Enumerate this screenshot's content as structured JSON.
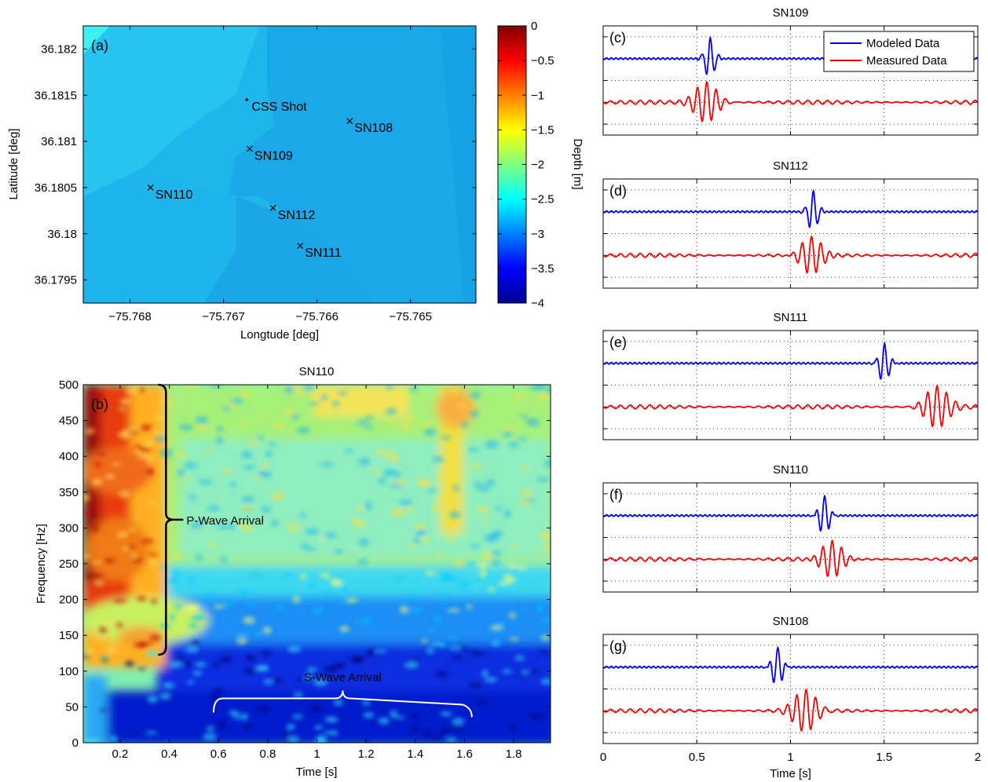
{
  "chart_data": [
    {
      "panel": "(a)",
      "type": "heatmap",
      "title": "",
      "xlabel": "Longtude [deg]",
      "ylabel": "Latitude [deg]",
      "xlim": [
        -75.7685,
        -75.7643
      ],
      "ylim": [
        36.17925,
        36.18225
      ],
      "x_ticks": [
        -75.768,
        -75.767,
        -75.766,
        -75.765
      ],
      "x_tick_labels": [
        "−75.768",
        "−75.767",
        "−75.766",
        "−75.765"
      ],
      "y_ticks": [
        36.1795,
        36.18,
        36.1805,
        36.181,
        36.1815,
        36.182
      ],
      "y_tick_labels": [
        "36.1795",
        "36.18",
        "36.1805",
        "36.181",
        "36.1815",
        "36.182"
      ],
      "colorbar": {
        "label": "Depth [m]",
        "range": [
          -4,
          0
        ],
        "ticks": [
          0,
          -0.5,
          -1,
          -1.5,
          -2,
          -2.5,
          -3,
          -3.5,
          -4
        ],
        "tick_labels": [
          "0",
          "−0.5",
          "−1",
          "−1.5",
          "−2",
          "−2.5",
          "−3",
          "−3.5",
          "−4"
        ]
      },
      "colormap": "jet",
      "depth_levels": [
        {
          "region": "northwest",
          "depth": -2.55
        },
        {
          "region": "center",
          "depth": -2.8
        },
        {
          "region": "northeast",
          "depth": -2.7
        },
        {
          "region": "south",
          "depth": -2.9
        }
      ],
      "points": [
        {
          "label": "CSS Shot",
          "marker": "dot",
          "lon": -75.76675,
          "lat": 36.18145
        },
        {
          "label": "SN108",
          "marker": "x",
          "lon": -75.76565,
          "lat": 36.18122
        },
        {
          "label": "SN109",
          "marker": "x",
          "lon": -75.76672,
          "lat": 36.18092
        },
        {
          "label": "SN110",
          "marker": "x",
          "lon": -75.76778,
          "lat": 36.1805
        },
        {
          "label": "SN112",
          "marker": "x",
          "lon": -75.76647,
          "lat": 36.18028
        },
        {
          "label": "SN111",
          "marker": "x",
          "lon": -75.76618,
          "lat": 36.17987
        }
      ]
    },
    {
      "panel": "(b)",
      "type": "heatmap",
      "title": "SN110",
      "xlabel": "Time [s]",
      "ylabel": "Frequency [Hz]",
      "xlim": [
        0.05,
        1.95
      ],
      "ylim": [
        0,
        500
      ],
      "x_ticks": [
        0.2,
        0.4,
        0.6,
        0.8,
        1,
        1.2,
        1.4,
        1.6,
        1.8
      ],
      "x_tick_labels": [
        "0.2",
        "0.4",
        "0.6",
        "0.8",
        "1",
        "1.2",
        "1.4",
        "1.6",
        "1.8"
      ],
      "y_ticks": [
        0,
        50,
        100,
        150,
        200,
        250,
        300,
        350,
        400,
        450,
        500
      ],
      "y_tick_labels": [
        "0",
        "50",
        "100",
        "150",
        "200",
        "250",
        "300",
        "350",
        "400",
        "450",
        "500"
      ],
      "colormap": "jet",
      "annotations": [
        {
          "text": "P-Wave Arrival",
          "time_at": 0.38,
          "freq_from": 123,
          "freq_to": 500,
          "color": "#000000"
        },
        {
          "text": "S-Wave Arrival",
          "time_from": 0.58,
          "time_to": 1.63,
          "freq_at": 62,
          "color": "#ffffff"
        }
      ]
    },
    {
      "panel": "(c)",
      "type": "line",
      "title": "SN109",
      "xlim": [
        0,
        2
      ],
      "series": [
        {
          "name": "Modeled Data",
          "color": "#0000ff",
          "arrival_s": 0.57,
          "amplitude": 1.0
        },
        {
          "name": "Measured Data",
          "color": "#ff0000",
          "arrival_s": 0.55,
          "amplitude": 1.0
        }
      ]
    },
    {
      "panel": "(d)",
      "type": "line",
      "title": "SN112",
      "xlim": [
        0,
        2
      ],
      "series": [
        {
          "name": "Modeled Data",
          "color": "#0000ff",
          "arrival_s": 1.12,
          "amplitude": 1.0
        },
        {
          "name": "Measured Data",
          "color": "#ff0000",
          "arrival_s": 1.11,
          "amplitude": 1.0
        }
      ]
    },
    {
      "panel": "(e)",
      "type": "line",
      "title": "SN111",
      "xlim": [
        0,
        2
      ],
      "series": [
        {
          "name": "Modeled Data",
          "color": "#0000ff",
          "arrival_s": 1.5,
          "amplitude": 1.0
        },
        {
          "name": "Measured Data",
          "color": "#ff0000",
          "arrival_s": 1.78,
          "amplitude": 1.0
        }
      ]
    },
    {
      "panel": "(f)",
      "type": "line",
      "title": "SN110",
      "xlim": [
        0,
        2
      ],
      "series": [
        {
          "name": "Modeled Data",
          "color": "#0000ff",
          "arrival_s": 1.18,
          "amplitude": 1.0
        },
        {
          "name": "Measured Data",
          "color": "#ff0000",
          "arrival_s": 1.22,
          "amplitude": 1.0
        }
      ]
    },
    {
      "panel": "(g)",
      "type": "line",
      "title": "SN108",
      "xlabel": "Time [s]",
      "xlim": [
        0,
        2
      ],
      "x_ticks": [
        0,
        0.5,
        1,
        1.5,
        2
      ],
      "x_tick_labels": [
        "0",
        "0.5",
        "1",
        "1.5",
        "2"
      ],
      "series": [
        {
          "name": "Modeled Data",
          "color": "#0000ff",
          "arrival_s": 0.93,
          "amplitude": 1.0
        },
        {
          "name": "Measured Data",
          "color": "#ff0000",
          "arrival_s": 1.08,
          "amplitude": 1.0
        }
      ]
    }
  ],
  "legend": {
    "position": "top-right",
    "items": [
      "Modeled Data",
      "Measured Data"
    ]
  }
}
